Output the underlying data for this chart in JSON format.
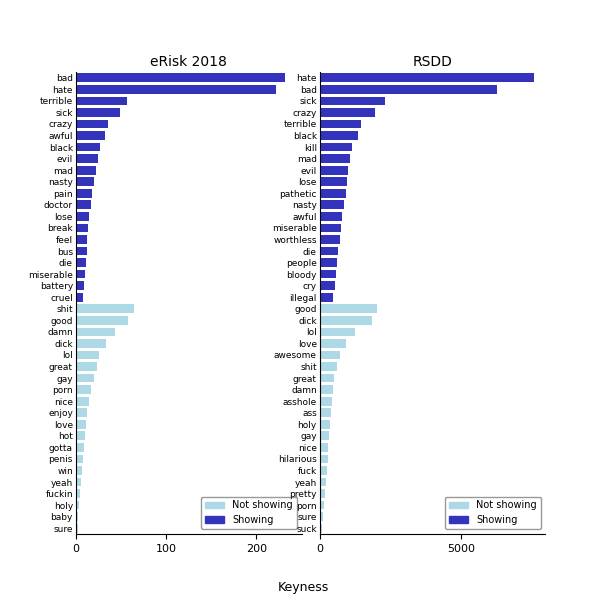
{
  "erisk_words": [
    "bad",
    "hate",
    "terrible",
    "sick",
    "crazy",
    "awful",
    "black",
    "evil",
    "mad",
    "nasty",
    "pain",
    "doctor",
    "lose",
    "break",
    "feel",
    "bus",
    "die",
    "miserable",
    "battery",
    "cruel",
    "shit",
    "good",
    "damn",
    "dick",
    "lol",
    "great",
    "gay",
    "porn",
    "nice",
    "enjoy",
    "love",
    "hot",
    "gotta",
    "penis",
    "win",
    "yeah",
    "fuckin",
    "holy",
    "baby",
    "sure"
  ],
  "erisk_values": [
    232,
    222,
    57,
    49,
    36,
    32,
    27,
    25,
    22,
    20,
    18,
    17,
    15,
    14,
    13,
    12,
    11,
    10,
    9,
    8,
    65,
    58,
    44,
    33,
    26,
    23,
    20,
    17,
    15,
    13,
    11,
    10,
    9,
    8,
    7,
    6,
    5,
    4,
    3,
    2
  ],
  "erisk_colors": [
    "blue",
    "blue",
    "blue",
    "blue",
    "blue",
    "blue",
    "blue",
    "blue",
    "blue",
    "blue",
    "blue",
    "blue",
    "blue",
    "blue",
    "blue",
    "blue",
    "blue",
    "blue",
    "blue",
    "blue",
    "lightblue",
    "lightblue",
    "lightblue",
    "lightblue",
    "lightblue",
    "lightblue",
    "lightblue",
    "lightblue",
    "lightblue",
    "lightblue",
    "lightblue",
    "lightblue",
    "lightblue",
    "lightblue",
    "lightblue",
    "lightblue",
    "lightblue",
    "lightblue",
    "lightblue",
    "lightblue"
  ],
  "rsdd_words": [
    "hate",
    "bad",
    "sick",
    "crazy",
    "terrible",
    "black",
    "kill",
    "mad",
    "evil",
    "lose",
    "pathetic",
    "nasty",
    "awful",
    "miserable",
    "worthless",
    "die",
    "people",
    "bloody",
    "cry",
    "illegal",
    "good",
    "dick",
    "lol",
    "love",
    "awesome",
    "shit",
    "great",
    "damn",
    "asshole",
    "ass",
    "holy",
    "gay",
    "nice",
    "hilarious",
    "fuck",
    "yeah",
    "pretty",
    "porn",
    "sure",
    "suck"
  ],
  "rsdd_values": [
    7600,
    6300,
    2300,
    1950,
    1450,
    1350,
    1150,
    1080,
    1020,
    970,
    920,
    860,
    810,
    760,
    710,
    660,
    610,
    570,
    530,
    490,
    2050,
    1850,
    1250,
    920,
    720,
    610,
    510,
    460,
    430,
    400,
    370,
    340,
    310,
    280,
    250,
    220,
    190,
    160,
    130,
    100
  ],
  "rsdd_colors": [
    "blue",
    "blue",
    "blue",
    "blue",
    "blue",
    "blue",
    "blue",
    "blue",
    "blue",
    "blue",
    "blue",
    "blue",
    "blue",
    "blue",
    "blue",
    "blue",
    "blue",
    "blue",
    "blue",
    "blue",
    "lightblue",
    "lightblue",
    "lightblue",
    "lightblue",
    "lightblue",
    "lightblue",
    "lightblue",
    "lightblue",
    "lightblue",
    "lightblue",
    "lightblue",
    "lightblue",
    "lightblue",
    "lightblue",
    "lightblue",
    "lightblue",
    "lightblue",
    "lightblue",
    "lightblue",
    "lightblue"
  ],
  "erisk_title": "eRisk 2018",
  "rsdd_title": "RSDD",
  "xlabel": "Keyness",
  "blue_color": "#3333BB",
  "lightblue_color": "#ADD8E6",
  "erisk_xlim": [
    0,
    250
  ],
  "erisk_xticks": [
    0,
    100,
    200
  ],
  "rsdd_xlim": [
    0,
    8000
  ],
  "rsdd_xticks": [
    0,
    5000
  ],
  "bar_height": 0.75,
  "fontsize_labels": 6.5,
  "fontsize_title": 10,
  "fontsize_tick": 8,
  "fontsize_legend": 7
}
